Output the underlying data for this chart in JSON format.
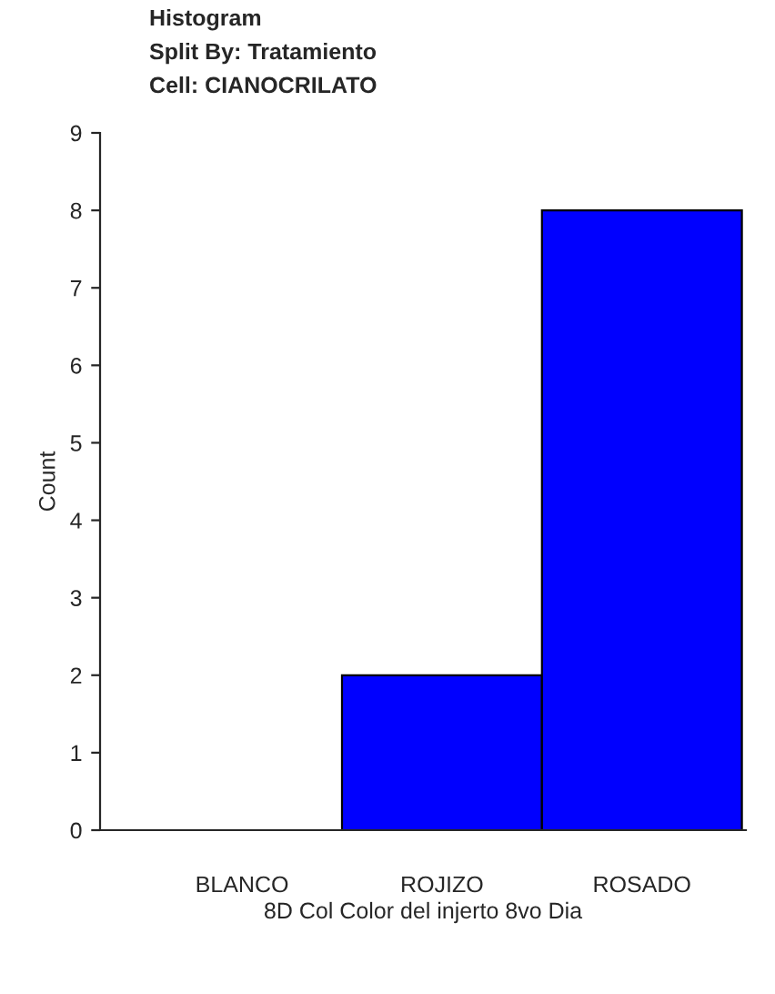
{
  "chart_data": {
    "type": "bar",
    "title": "Histogram\nSplit By: Tratamiento\nCell: CIANOCRILATO",
    "xlabel": "8D Col Color del injerto 8vo Dia",
    "ylabel": "Count",
    "categories": [
      "BLANCO",
      "ROJIZO",
      "ROSADO"
    ],
    "values": [
      0,
      2,
      8
    ],
    "color": "#0000ff",
    "ylim": [
      0,
      9
    ],
    "yticks": [
      0,
      1,
      2,
      3,
      4,
      5,
      6,
      7,
      8,
      9
    ],
    "grid": false,
    "legend": false
  }
}
